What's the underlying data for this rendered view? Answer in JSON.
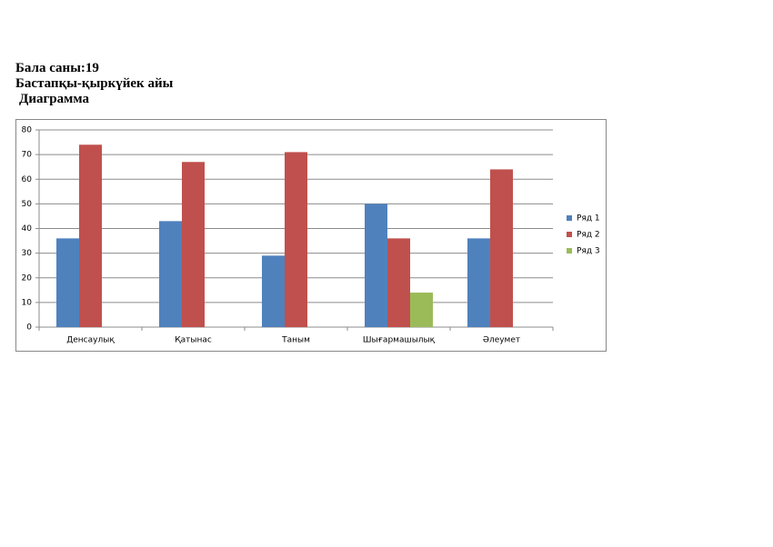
{
  "header": {
    "lines": [
      "Бала саны:19",
      "Бастапқы-қыркүйек айы",
      "Диаграмма"
    ]
  },
  "chart_data": {
    "type": "bar",
    "categories": [
      "Денсаулық",
      "Қатынас",
      "Таным",
      "Шығармашылық",
      "Әлеумет"
    ],
    "series": [
      {
        "name": "Ряд 1",
        "color": "#4f81bd",
        "values": [
          36,
          43,
          29,
          50,
          36
        ]
      },
      {
        "name": "Ряд 2",
        "color": "#c0504d",
        "values": [
          74,
          67,
          71,
          36,
          64
        ]
      },
      {
        "name": "Ряд 3",
        "color": "#9bbb59",
        "values": [
          null,
          null,
          null,
          14,
          null
        ]
      }
    ],
    "ylim": [
      0,
      80
    ],
    "yticks": [
      0,
      10,
      20,
      30,
      40,
      50,
      60,
      70,
      80
    ],
    "grid": true,
    "legend": "right"
  }
}
